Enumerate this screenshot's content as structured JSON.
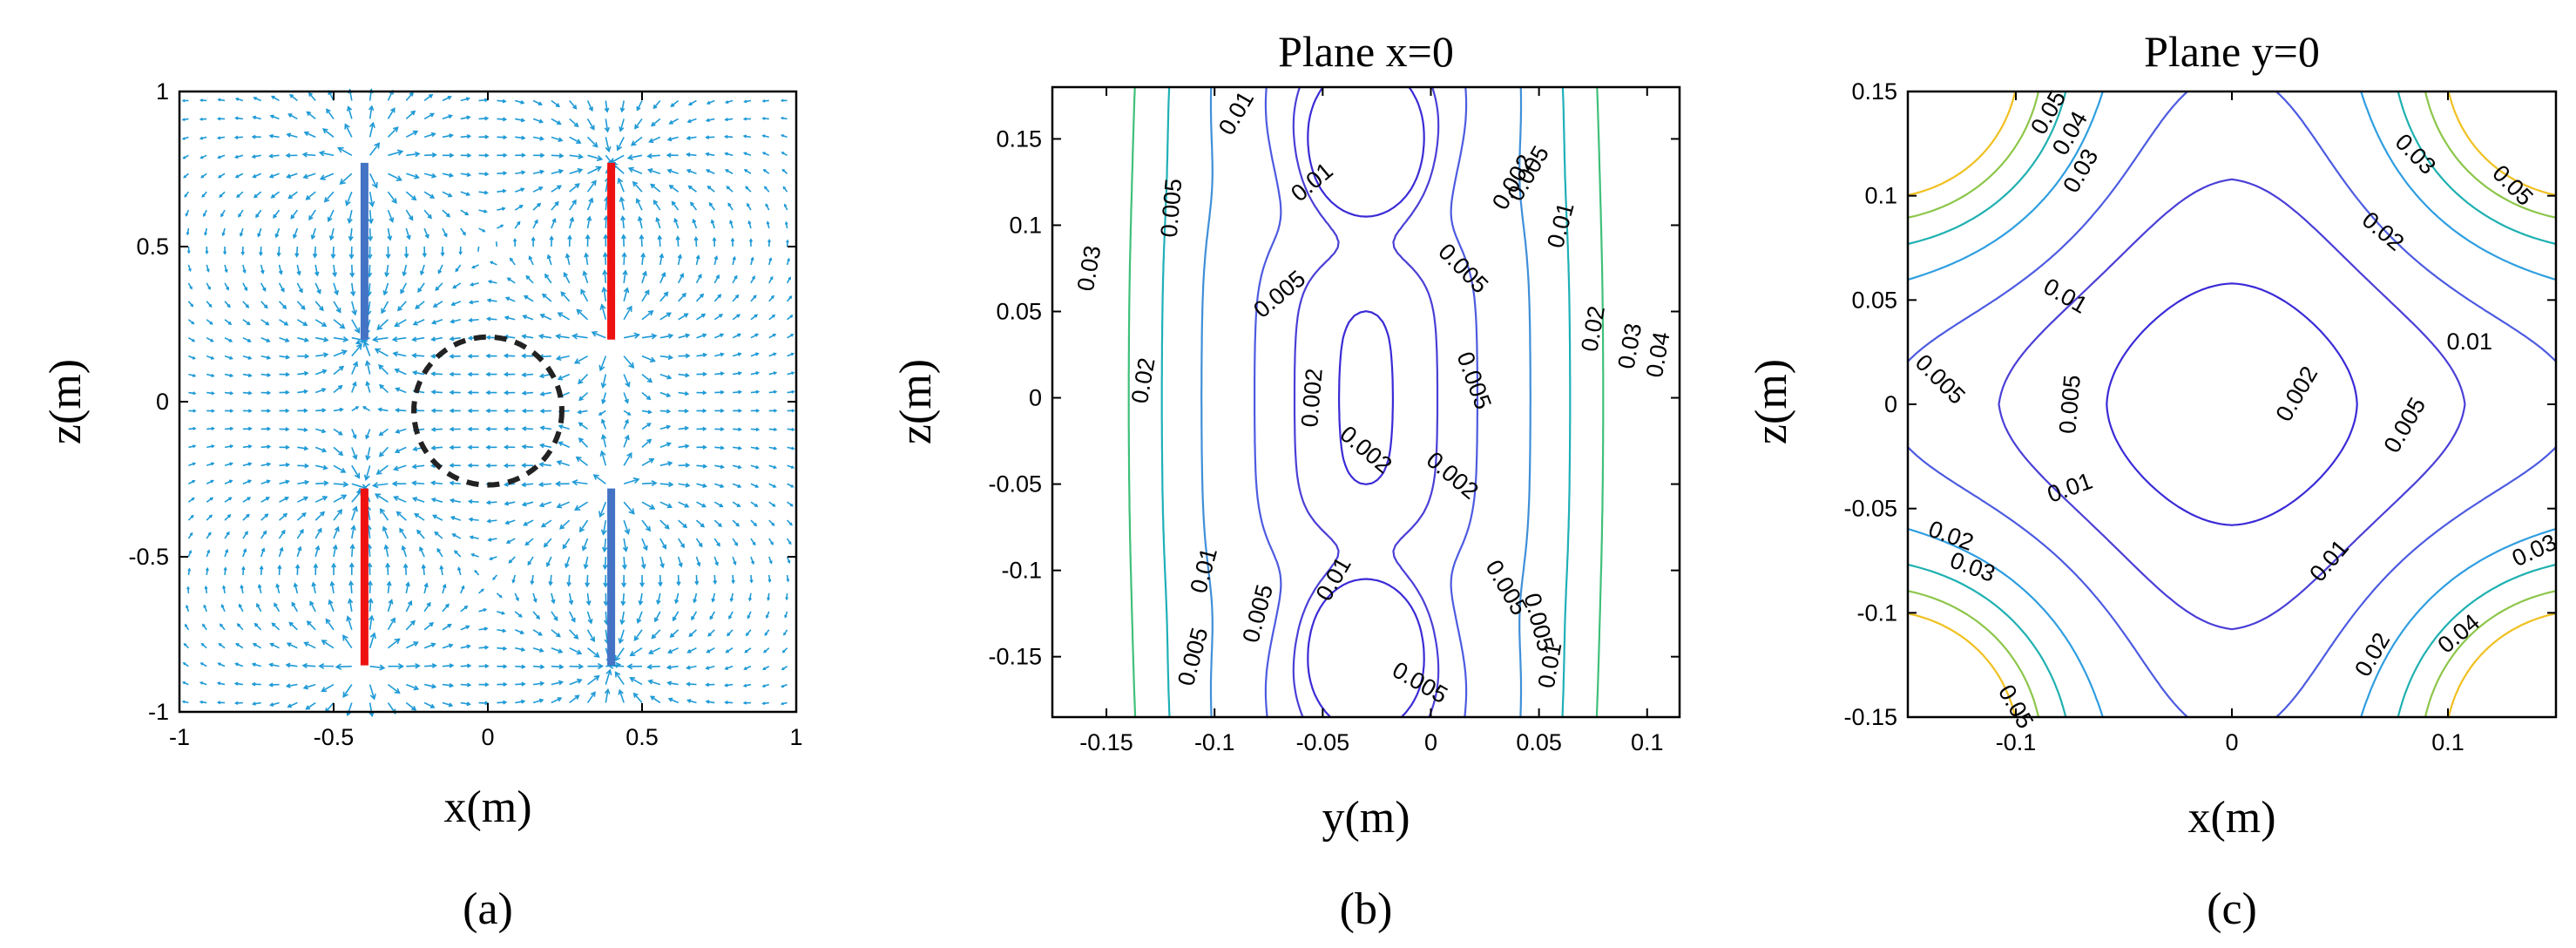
{
  "chart_data": [
    {
      "type": "quiver",
      "panel_caption": "(a)",
      "title": "",
      "xlabel": "x(m)",
      "ylabel": "z(m)",
      "xlim": [
        -1,
        1
      ],
      "ylim": [
        -1,
        1
      ],
      "xticks": [
        -1,
        -0.5,
        0,
        0.5,
        1
      ],
      "yticks": [
        -1,
        -0.5,
        0,
        0.5,
        1
      ],
      "xtick_labels": [
        "-1",
        "-0.5",
        "0",
        "0.5",
        "1"
      ],
      "ytick_labels": [
        "-1",
        "-0.5",
        "0",
        "0.5",
        "1"
      ],
      "arrow_color": "#1f9ad6",
      "sources": [
        {
          "x": -0.4,
          "z_top": 0.77,
          "z_bottom": 0.2,
          "color": "#4472c4"
        },
        {
          "x": 0.4,
          "z_top": 0.77,
          "z_bottom": 0.2,
          "color": "#ee1111"
        },
        {
          "x": -0.4,
          "z_top": -0.28,
          "z_bottom": -0.85,
          "color": "#ee1111"
        },
        {
          "x": 0.4,
          "z_top": -0.28,
          "z_bottom": -0.85,
          "color": "#4472c4"
        }
      ],
      "circle": {
        "cx": 0,
        "cz": -0.03,
        "r": 0.24,
        "color": "#222222"
      }
    },
    {
      "type": "contour",
      "panel_caption": "(b)",
      "title": "Plane x=0",
      "xlabel": "y(m)",
      "ylabel": "z(m)",
      "xlim": [
        -0.175,
        0.115
      ],
      "ylim": [
        -0.185,
        0.18
      ],
      "xticks": [
        -0.15,
        -0.1,
        -0.05,
        0,
        0.05,
        0.1
      ],
      "yticks": [
        -0.15,
        -0.1,
        -0.05,
        0,
        0.05,
        0.1,
        0.15
      ],
      "xtick_labels": [
        "-0.15",
        "-0.1",
        "-0.05",
        "0",
        "0.05",
        "0.1"
      ],
      "ytick_labels": [
        "-0.15",
        "-0.1",
        "-0.05",
        "0",
        "0.05",
        "0.1",
        "0.15"
      ],
      "levels": [
        0.002,
        0.005,
        0.01,
        0.02,
        0.03,
        0.04
      ],
      "level_colors": [
        "#3b2bd6",
        "#4a3fd6",
        "#4d5be0",
        "#3f8fd8",
        "#1fb0b8",
        "#3fc07a"
      ],
      "contour_labels": [
        {
          "text": "0.01",
          "x": -0.09,
          "y": 0.165,
          "rot": -60
        },
        {
          "text": "0.005",
          "x": -0.12,
          "y": 0.11,
          "rot": -85
        },
        {
          "text": "0.01",
          "x": -0.055,
          "y": 0.125,
          "rot": -40
        },
        {
          "text": "0.005",
          "x": -0.07,
          "y": 0.06,
          "rot": -40
        },
        {
          "text": "0.005",
          "x": 0.015,
          "y": 0.075,
          "rot": 45
        },
        {
          "text": "0.005",
          "x": 0.045,
          "y": 0.13,
          "rot": -60
        },
        {
          "text": "0.002",
          "x": 0.038,
          "y": 0.125,
          "rot": -60
        },
        {
          "text": "0.01",
          "x": 0.06,
          "y": 0.1,
          "rot": -75
        },
        {
          "text": "0.03",
          "x": -0.158,
          "y": 0.075,
          "rot": -80
        },
        {
          "text": "0.02",
          "x": -0.133,
          "y": 0.01,
          "rot": -80
        },
        {
          "text": "0.002",
          "x": -0.055,
          "y": 0.0,
          "rot": -85
        },
        {
          "text": "0.002",
          "x": -0.03,
          "y": -0.03,
          "rot": 40
        },
        {
          "text": "0.002",
          "x": 0.01,
          "y": -0.045,
          "rot": 40
        },
        {
          "text": "0.005",
          "x": 0.02,
          "y": 0.01,
          "rot": 70
        },
        {
          "text": "0.02",
          "x": 0.075,
          "y": 0.04,
          "rot": -80
        },
        {
          "text": "0.03",
          "x": 0.092,
          "y": 0.03,
          "rot": -80
        },
        {
          "text": "0.04",
          "x": 0.105,
          "y": 0.025,
          "rot": -80
        },
        {
          "text": "0.01",
          "x": -0.105,
          "y": -0.1,
          "rot": -75
        },
        {
          "text": "0.005",
          "x": -0.11,
          "y": -0.15,
          "rot": -75
        },
        {
          "text": "0.005",
          "x": -0.08,
          "y": -0.125,
          "rot": -75
        },
        {
          "text": "0.01",
          "x": -0.045,
          "y": -0.105,
          "rot": -60
        },
        {
          "text": "0.005",
          "x": -0.005,
          "y": -0.165,
          "rot": 30
        },
        {
          "text": "0.005",
          "x": 0.035,
          "y": -0.11,
          "rot": 60
        },
        {
          "text": "0.005",
          "x": 0.05,
          "y": -0.13,
          "rot": 75
        },
        {
          "text": "0.01",
          "x": 0.055,
          "y": -0.155,
          "rot": -80
        }
      ]
    },
    {
      "type": "contour",
      "panel_caption": "(c)",
      "title": "Plane y=0",
      "xlabel": "x(m)",
      "ylabel": "z(m)",
      "xlim": [
        -0.15,
        0.15
      ],
      "ylim": [
        -0.15,
        0.15
      ],
      "xticks": [
        -0.1,
        0,
        0.1
      ],
      "yticks": [
        -0.15,
        -0.1,
        -0.05,
        0,
        0.05,
        0.1,
        0.15
      ],
      "xtick_labels": [
        "-0.1",
        "0",
        "0.1"
      ],
      "ytick_labels": [
        "-0.15",
        "-0.1",
        "-0.05",
        "0",
        "0.05",
        "0.1",
        "0.15"
      ],
      "levels": [
        0.002,
        0.005,
        0.01,
        0.02,
        0.03,
        0.04,
        0.05
      ],
      "level_colors": [
        "#3b2bd6",
        "#4a3fd6",
        "#4d5be0",
        "#2f9ee0",
        "#1fb0b0",
        "#8cc64a",
        "#f0c020"
      ],
      "contour_labels": [
        {
          "text": "0.05",
          "x": -0.085,
          "y": 0.14,
          "rot": -60
        },
        {
          "text": "0.04",
          "x": -0.075,
          "y": 0.13,
          "rot": -60
        },
        {
          "text": "0.03",
          "x": -0.07,
          "y": 0.112,
          "rot": -60
        },
        {
          "text": "0.03",
          "x": 0.085,
          "y": 0.12,
          "rot": 45
        },
        {
          "text": "0.05",
          "x": 0.13,
          "y": 0.105,
          "rot": 45
        },
        {
          "text": "0.02",
          "x": 0.07,
          "y": 0.083,
          "rot": 40
        },
        {
          "text": "0.01",
          "x": -0.077,
          "y": 0.052,
          "rot": 30
        },
        {
          "text": "0.005",
          "x": -0.135,
          "y": 0.012,
          "rot": 45
        },
        {
          "text": "0.005",
          "x": -0.075,
          "y": 0.0,
          "rot": -85
        },
        {
          "text": "0.002",
          "x": 0.03,
          "y": 0.005,
          "rot": -60
        },
        {
          "text": "0.01",
          "x": 0.11,
          "y": 0.03,
          "rot": 0
        },
        {
          "text": "0.005",
          "x": 0.08,
          "y": -0.01,
          "rot": -60
        },
        {
          "text": "0.01",
          "x": -0.075,
          "y": -0.04,
          "rot": -20
        },
        {
          "text": "0.02",
          "x": -0.13,
          "y": -0.063,
          "rot": 20
        },
        {
          "text": "0.03",
          "x": -0.12,
          "y": -0.078,
          "rot": 20
        },
        {
          "text": "0.01",
          "x": 0.045,
          "y": -0.075,
          "rot": -50
        },
        {
          "text": "0.03",
          "x": 0.14,
          "y": -0.07,
          "rot": -25
        },
        {
          "text": "0.02",
          "x": 0.065,
          "y": -0.12,
          "rot": -60
        },
        {
          "text": "0.04",
          "x": 0.105,
          "y": -0.11,
          "rot": -40
        },
        {
          "text": "0.05",
          "x": -0.1,
          "y": -0.145,
          "rot": 60
        }
      ]
    }
  ]
}
